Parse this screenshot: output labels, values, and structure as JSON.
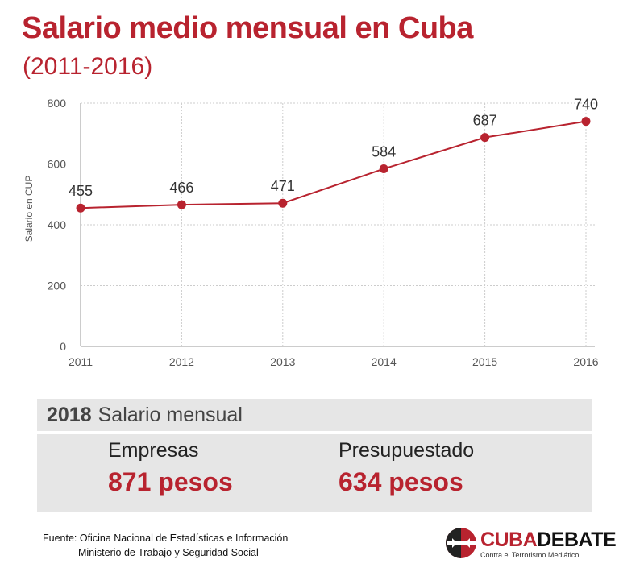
{
  "header": {
    "title": "Salario medio mensual en Cuba",
    "subtitle": "(2011-2016)"
  },
  "colors": {
    "accent": "#b8232f",
    "grid": "#cccccc",
    "panel": "#e6e6e6"
  },
  "chart_data": {
    "type": "line",
    "x": [
      "2011",
      "2012",
      "2013",
      "2014",
      "2015",
      "2016"
    ],
    "values": [
      455,
      466,
      471,
      584,
      687,
      740
    ],
    "data_labels": [
      "455",
      "466",
      "471",
      "584",
      "687",
      "740"
    ],
    "ylabel": "Salario en CUP",
    "xlabel": "",
    "ylim": [
      0,
      800
    ],
    "yticks": [
      0,
      200,
      400,
      600,
      800
    ],
    "ytick_labels": [
      "0",
      "200",
      "400",
      "600",
      "800"
    ],
    "grid": true,
    "legend": "none"
  },
  "summary": {
    "year": "2018",
    "title": "Salario mensual",
    "items": [
      {
        "label": "Empresas",
        "value": "871 pesos"
      },
      {
        "label": "Presupuestado",
        "value": "634 pesos"
      }
    ]
  },
  "source": {
    "line1": "Fuente: Oficina Nacional de Estadísticas e Información",
    "line2": "Ministerio de Trabajo y Seguridad Social"
  },
  "logo": {
    "name_part1": "CUBA",
    "name_part2": "DEBATE",
    "tagline": "Contra el Terrorismo Mediático",
    "icon": "cubadebate-logo-icon"
  }
}
